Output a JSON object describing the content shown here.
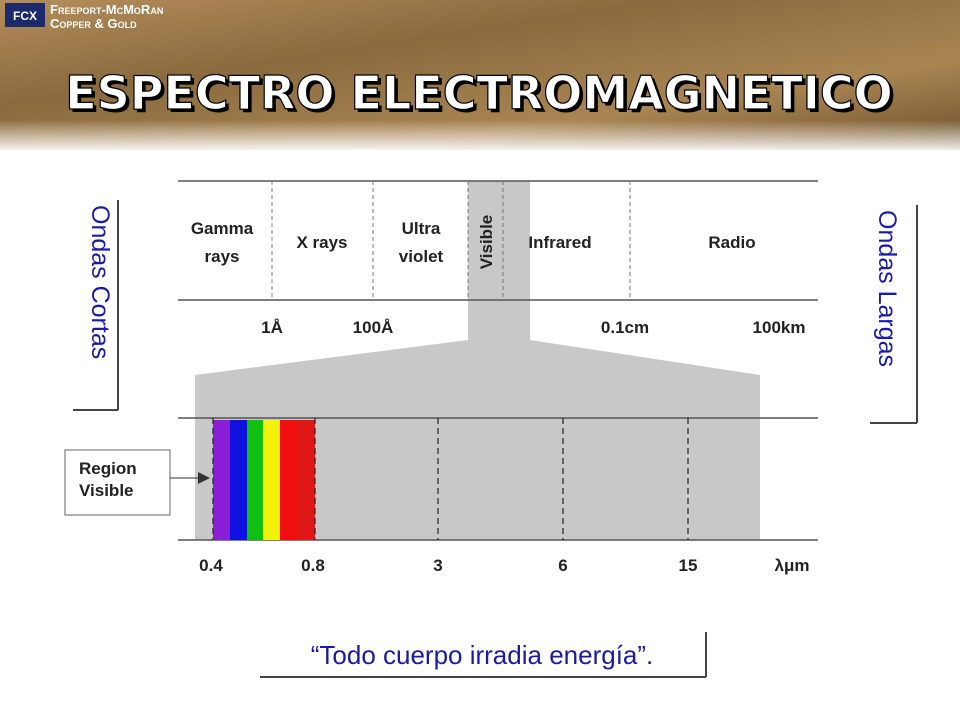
{
  "header": {
    "logo_mark": "FCX",
    "company": "Freeport-McMoRan",
    "division": "Copper & Gold",
    "title": "ESPECTRO ELECTROMAGNETICO"
  },
  "diagram": {
    "bands": [
      {
        "lines": [
          "Gamma",
          "rays"
        ]
      },
      {
        "lines": [
          "X rays"
        ]
      },
      {
        "lines": [
          "Ultra",
          "violet"
        ]
      },
      {
        "lines": [
          "Visible"
        ]
      },
      {
        "lines": [
          "Infrared"
        ]
      },
      {
        "lines": [
          "Radio"
        ]
      }
    ],
    "wavelengths": [
      "1Å",
      "100Å",
      "0.1cm",
      "100km"
    ],
    "visible_scale": [
      "0.4",
      "0.8",
      "3",
      "6",
      "15",
      "λμm"
    ],
    "region_box": [
      "Region",
      "Visible"
    ],
    "left_label": "Ondas Cortas",
    "right_label": "Ondas Largas"
  },
  "footer": {
    "quote": "“Todo cuerpo irradia energía”."
  }
}
